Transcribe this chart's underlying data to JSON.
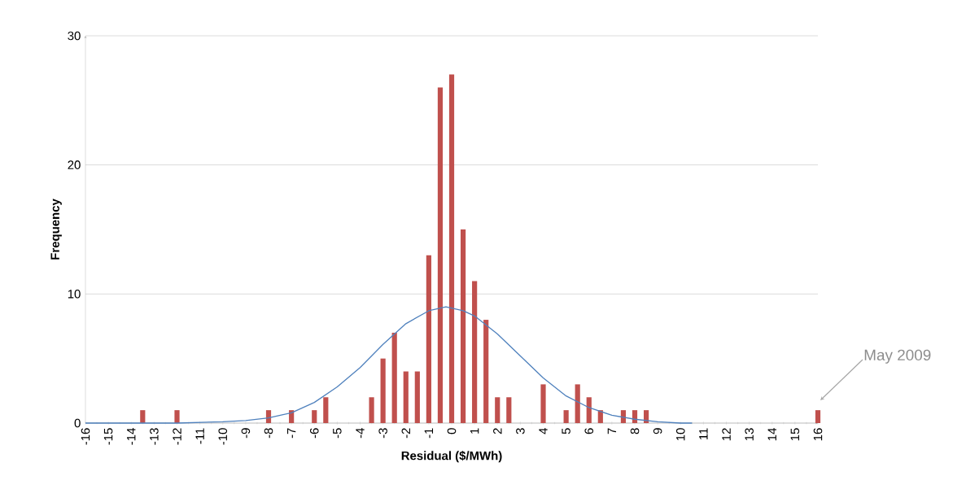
{
  "chart_data": {
    "type": "bar",
    "xlabel": "Residual ($/MWh)",
    "ylabel": "Frequency",
    "xlim": [
      -16,
      16
    ],
    "xticks": [
      -16,
      -15,
      -14,
      -13,
      -12,
      -11,
      -10,
      -9,
      -8,
      -7,
      -6,
      -5,
      -4,
      -3,
      -2,
      -1,
      0,
      1,
      2,
      3,
      4,
      5,
      6,
      7,
      8,
      9,
      10,
      11,
      12,
      13,
      14,
      15,
      16
    ],
    "ylim": [
      0,
      30
    ],
    "yticks": [
      0,
      10,
      20,
      30
    ],
    "grid": "y",
    "series": [
      {
        "color": "#c0504d",
        "x": [
          -13.5,
          -12,
          -8,
          -7,
          -6,
          -5.5,
          -3.5,
          -3,
          -2.5,
          -2,
          -1.5,
          -1,
          -0.5,
          0,
          0.5,
          1,
          1.5,
          2,
          2.5,
          4,
          5,
          5.5,
          6,
          6.5,
          7.5,
          8,
          8.5,
          16
        ],
        "values": [
          1,
          1,
          1,
          1,
          1,
          2,
          2,
          5,
          7,
          4,
          4,
          13,
          26,
          27,
          15,
          11,
          8,
          2,
          2,
          3,
          1,
          3,
          2,
          1,
          1,
          1,
          1,
          1
        ]
      },
      {
        "type": "line",
        "color": "#4f81bd",
        "x": [
          -16,
          -14,
          -12,
          -10,
          -9,
          -8,
          -7,
          -6,
          -5,
          -4,
          -3,
          -2,
          -1,
          -0.25,
          0.5,
          1,
          2,
          3,
          4,
          5,
          6,
          7,
          8,
          9,
          10,
          10.5
        ],
        "values": [
          0,
          0,
          0,
          0.1,
          0.2,
          0.4,
          0.8,
          1.6,
          2.8,
          4.3,
          6.1,
          7.7,
          8.7,
          9,
          8.7,
          8.3,
          6.9,
          5.2,
          3.5,
          2.1,
          1.2,
          0.6,
          0.3,
          0.1,
          0,
          0
        ]
      }
    ],
    "annotations": [
      "May 2009"
    ]
  }
}
